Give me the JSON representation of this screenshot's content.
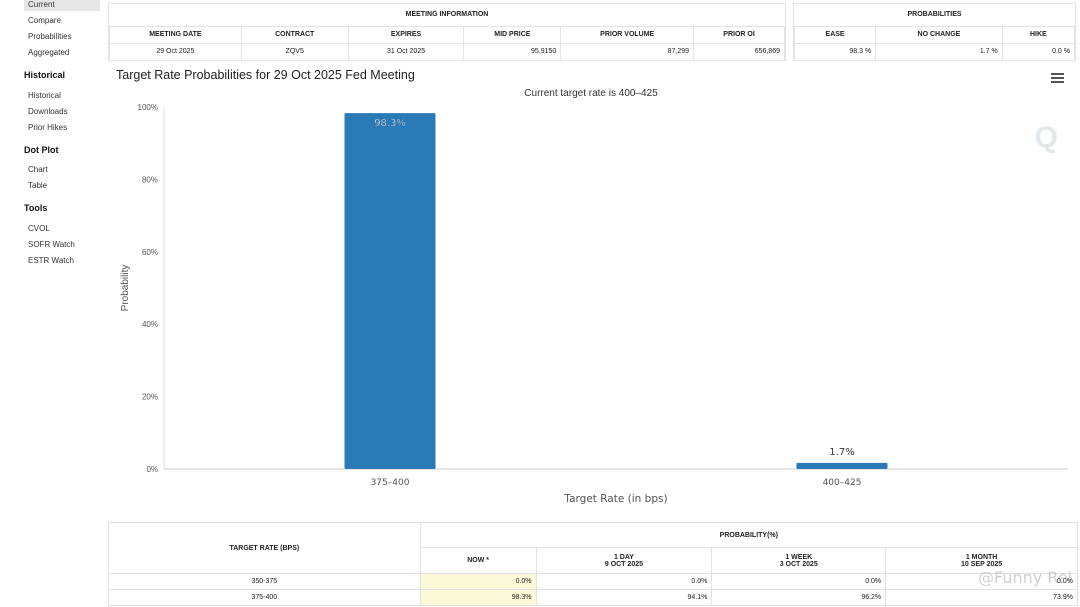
{
  "sidebar": {
    "top_items": [
      {
        "label": "Current",
        "active": true
      },
      {
        "label": "Compare"
      },
      {
        "label": "Probabilities"
      },
      {
        "label": "Aggregated"
      }
    ],
    "sections": [
      {
        "heading": "Historical",
        "items": [
          "Historical",
          "Downloads",
          "Prior Hikes"
        ]
      },
      {
        "heading": "Dot Plot",
        "items": [
          "Chart",
          "Table"
        ]
      },
      {
        "heading": "Tools",
        "items": [
          "CVOL",
          "SOFR Watch",
          "ESTR Watch"
        ]
      }
    ]
  },
  "meeting_info": {
    "title": "MEETING INFORMATION",
    "headers": [
      "MEETING DATE",
      "CONTRACT",
      "EXPIRES",
      "MID PRICE",
      "PRIOR VOLUME",
      "PRIOR OI"
    ],
    "values": [
      "29 Oct 2025",
      "ZQV5",
      "31 Oct 2025",
      "95.9150",
      "87,299",
      "656,869"
    ]
  },
  "probabilities": {
    "title": "PROBABILITIES",
    "headers": [
      "EASE",
      "NO CHANGE",
      "HIKE"
    ],
    "values": [
      "98.3 %",
      "1.7 %",
      "0.0 %"
    ]
  },
  "chart": {
    "title": "Target Rate Probabilities for 29 Oct 2025 Fed Meeting",
    "subtitle": "Current target rate is 400–425",
    "menu_icon": "hamburger-menu-icon",
    "bar_color": "#2a7ab8"
  },
  "chart_data": {
    "type": "bar",
    "title": "Target Rate Probabilities for 29 Oct 2025 Fed Meeting",
    "subtitle": "Current target rate is 400–425",
    "categories": [
      "375-400",
      "400-425"
    ],
    "category_labels": [
      "375–400",
      "400–425"
    ],
    "values": [
      98.3,
      1.7
    ],
    "data_labels": [
      "98.3%",
      "1.7%"
    ],
    "xlabel": "Target Rate (in bps)",
    "ylabel": "Probability",
    "ylim": [
      0,
      100
    ],
    "yticks": [
      0,
      20,
      40,
      60,
      80,
      100
    ],
    "ytick_labels": [
      "0%",
      "20%",
      "40%",
      "60%",
      "80%",
      "100%"
    ],
    "grid": false,
    "legend": "none"
  },
  "bottom_table": {
    "col_header": "TARGET RATE (BPS)",
    "group_header": "PROBABILITY(%)",
    "sub_headers": [
      {
        "line1": "NOW *",
        "line2": ""
      },
      {
        "line1": "1 DAY",
        "line2": "9 OCT 2025"
      },
      {
        "line1": "1 WEEK",
        "line2": "3 OCT 2025"
      },
      {
        "line1": "1 MONTH",
        "line2": "10 SEP 2025"
      }
    ],
    "rows": [
      {
        "rate": "350-375",
        "values": [
          "0.0%",
          "0.0%",
          "0.0%",
          "0.0%"
        ]
      },
      {
        "rate": "375-400",
        "values": [
          "98.3%",
          "94.1%",
          "96.2%",
          "73.9%"
        ]
      }
    ]
  },
  "watermark": "@Funny Rei"
}
